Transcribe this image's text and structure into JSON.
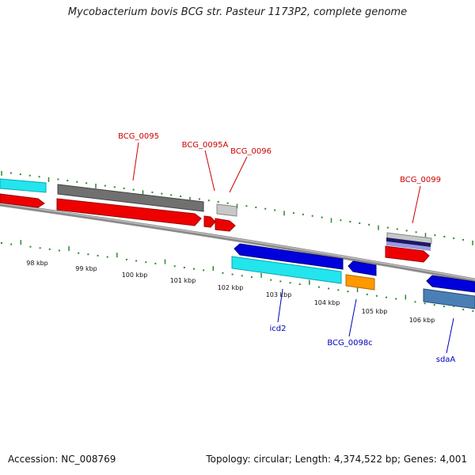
{
  "title": "Mycobacterium bovis BCG str. Pasteur 1173P2, complete genome",
  "footer": {
    "accession": "Accession: NC_008769",
    "summary": "Topology: circular; Length: 4,374,522 bp; Genes: 4,001"
  },
  "colors": {
    "backbone": "#8a8a8a",
    "tick": "#2a8a2a",
    "red": "#ee0000",
    "gray_feature": "#707070",
    "light_gray": "#c8c8c8",
    "cyan": "#22e5ee",
    "blue": "#0000dd",
    "orange": "#ff9900",
    "steel_blue": "#4a7fb5",
    "navy": "#1a1a66",
    "lavender": "#9a9ae0",
    "label_plus": "#cc0000",
    "label_minus": "#0000bb"
  },
  "kbp_labels": [
    "98 kbp",
    "99 kbp",
    "100 kbp",
    "101 kbp",
    "102 kbp",
    "103 kbp",
    "104 kbp",
    "105 kbp",
    "106 kbp"
  ],
  "gene_labels_plus": [
    "BCG_0095",
    "BCG_0095A",
    "BCG_0096",
    "BCG_0099"
  ],
  "gene_labels_minus": [
    "icd2",
    "BCG_0098c",
    "sdaA"
  ]
}
